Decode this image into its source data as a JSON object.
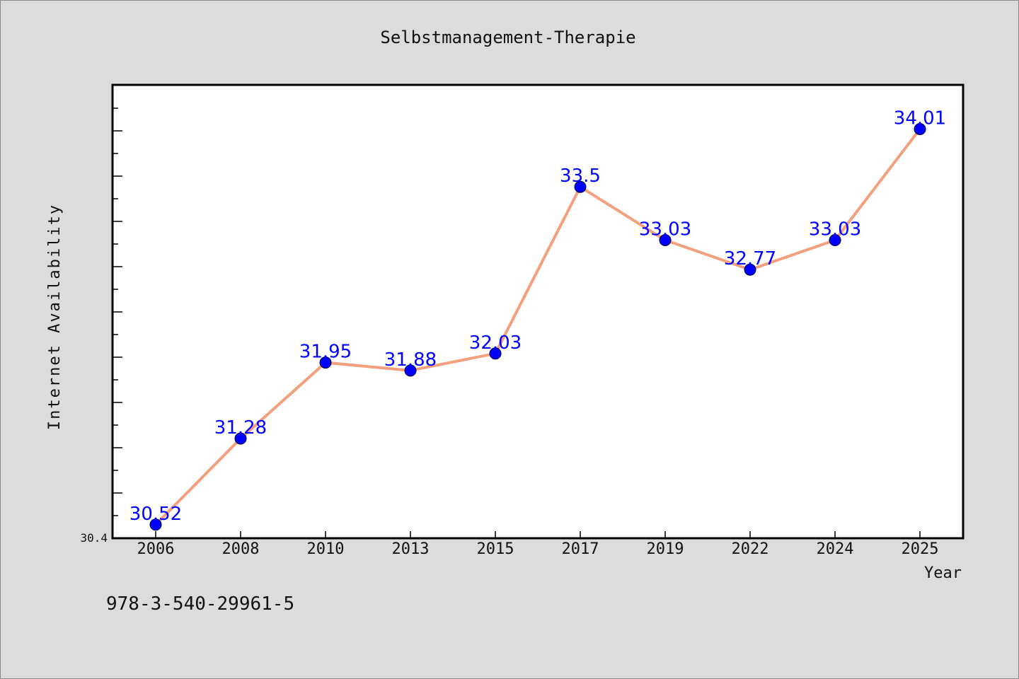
{
  "chart_data": {
    "type": "line",
    "title": "Selbstmanagement-Therapie",
    "xlabel": "Year",
    "ylabel": "Internet Availability",
    "categories": [
      "2006",
      "2008",
      "2010",
      "2013",
      "2015",
      "2017",
      "2019",
      "2022",
      "2024",
      "2025"
    ],
    "series": [
      {
        "values": [
          30.52,
          31.28,
          31.95,
          31.88,
          32.03,
          33.5,
          33.03,
          32.77,
          33.03,
          34.01
        ],
        "labels": [
          "30.52",
          "31.28",
          "31.95",
          "31.88",
          "32.03",
          "33.5",
          "33.03",
          "32.77",
          "33.03",
          "34.01"
        ]
      }
    ],
    "ylim": [
      30.4,
      34.4
    ],
    "y_tick_label": "30.4",
    "line_color": "#f4a07e",
    "marker_color": "#0000ff",
    "label_color": "#0000ff",
    "grid": false,
    "caption": "978-3-540-29961-5"
  }
}
